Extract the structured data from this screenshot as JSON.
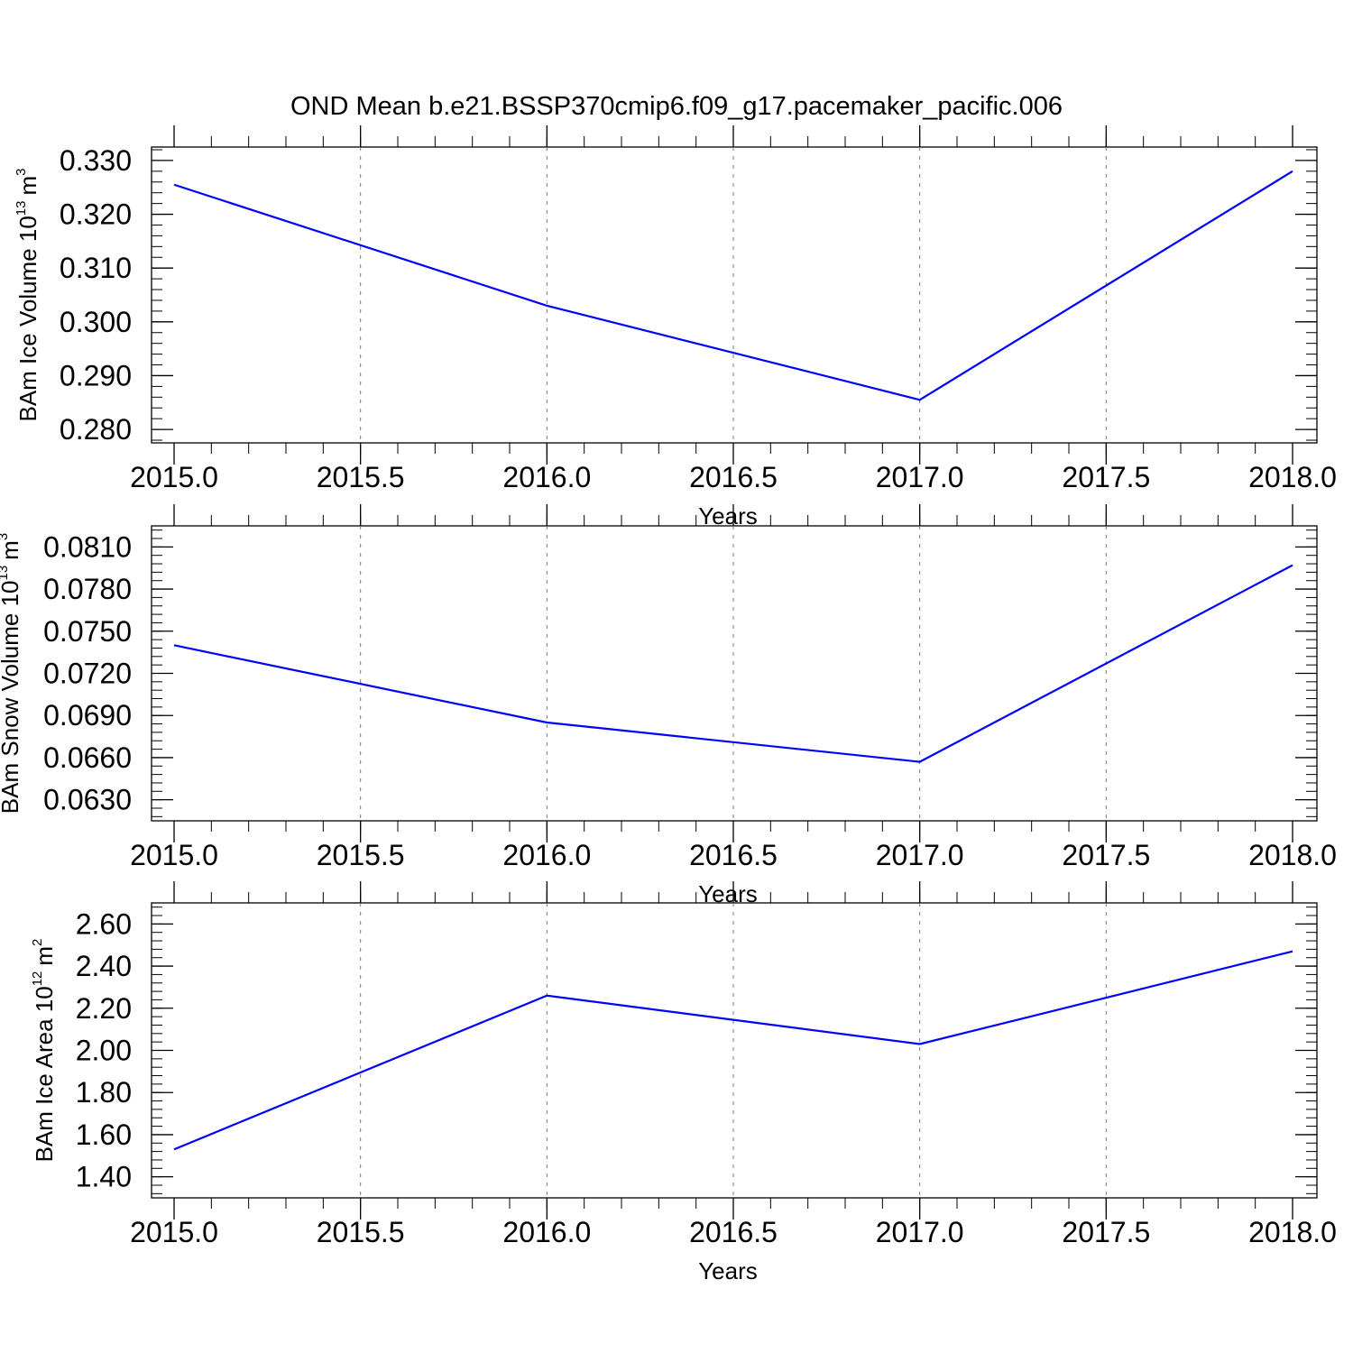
{
  "title": "OND Mean b.e21.BSSP370cmip6.f09_g17.pacemaker_pacific.006",
  "chart_data": [
    {
      "type": "line",
      "xlabel": "Years",
      "ylabel": "BAm Ice Volume 10",
      "ylabel_exp": "13",
      "ylabel_unit": "m",
      "ylabel_unit_exp": "3",
      "x": [
        2015,
        2016,
        2017,
        2018
      ],
      "xlim": [
        2015,
        2018
      ],
      "ylim": [
        0.2775,
        0.3325
      ],
      "xticks": [
        2015,
        2015.5,
        2016,
        2016.5,
        2017,
        2017.5,
        2018
      ],
      "xticklabels": [
        "2015.0",
        "2015.5",
        "2016.0",
        "2016.5",
        "2017.0",
        "2017.5",
        "2018.0"
      ],
      "yticks": [
        0.28,
        0.29,
        0.3,
        0.31,
        0.32,
        0.33
      ],
      "yticklabels": [
        "0.280",
        "0.290",
        "0.300",
        "0.310",
        "0.320",
        "0.330"
      ],
      "series": [
        {
          "values": [
            0.3255,
            0.303,
            0.2855,
            0.328
          ],
          "color": "#0000ff"
        }
      ],
      "grid": "vertical dashed"
    },
    {
      "type": "line",
      "xlabel": "Years",
      "ylabel": "BAm Snow Volume 10",
      "ylabel_exp": "13",
      "ylabel_unit": "m",
      "ylabel_unit_exp": "3",
      "x": [
        2015,
        2016,
        2017,
        2018
      ],
      "xlim": [
        2015,
        2018
      ],
      "ylim": [
        0.0615,
        0.0825
      ],
      "xticks": [
        2015,
        2015.5,
        2016,
        2016.5,
        2017,
        2017.5,
        2018
      ],
      "xticklabels": [
        "2015.0",
        "2015.5",
        "2016.0",
        "2016.5",
        "2017.0",
        "2017.5",
        "2018.0"
      ],
      "yticks": [
        0.063,
        0.066,
        0.069,
        0.072,
        0.075,
        0.078,
        0.081
      ],
      "yticklabels": [
        "0.0630",
        "0.0660",
        "0.0690",
        "0.0720",
        "0.0750",
        "0.0780",
        "0.0810"
      ],
      "series": [
        {
          "values": [
            0.074,
            0.0685,
            0.0657,
            0.0797
          ],
          "color": "#0000ff"
        }
      ],
      "grid": "vertical dashed"
    },
    {
      "type": "line",
      "xlabel": "Years",
      "ylabel": "BAm Ice Area 10",
      "ylabel_exp": "12",
      "ylabel_unit": "m",
      "ylabel_unit_exp": "2",
      "x": [
        2015,
        2016,
        2017,
        2018
      ],
      "xlim": [
        2015,
        2018
      ],
      "ylim": [
        1.3,
        2.7
      ],
      "xticks": [
        2015,
        2015.5,
        2016,
        2016.5,
        2017,
        2017.5,
        2018
      ],
      "xticklabels": [
        "2015.0",
        "2015.5",
        "2016.0",
        "2016.5",
        "2017.0",
        "2017.5",
        "2018.0"
      ],
      "yticks": [
        1.4,
        1.6,
        1.8,
        2.0,
        2.2,
        2.4,
        2.6
      ],
      "yticklabels": [
        "1.40",
        "1.60",
        "1.80",
        "2.00",
        "2.20",
        "2.40",
        "2.60"
      ],
      "series": [
        {
          "values": [
            1.53,
            2.26,
            2.03,
            2.47
          ],
          "color": "#0000ff"
        }
      ],
      "grid": "vertical dashed"
    }
  ]
}
